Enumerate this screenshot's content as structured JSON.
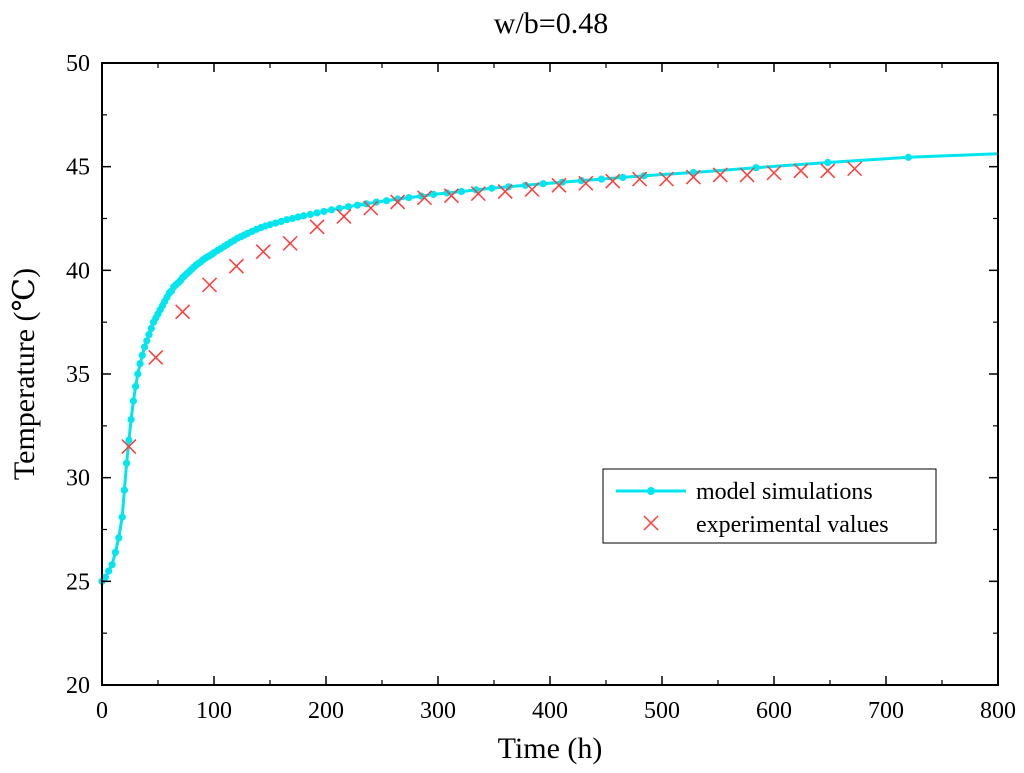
{
  "chart_data": {
    "type": "line",
    "title": "w/b=0.48",
    "xlabel": "Time (h)",
    "ylabel": "Temperature (℃)",
    "xlim": [
      0,
      800
    ],
    "ylim": [
      20,
      50
    ],
    "xticks": [
      0,
      100,
      200,
      300,
      400,
      500,
      600,
      700,
      800
    ],
    "yticks": [
      20,
      25,
      30,
      35,
      40,
      45,
      50
    ],
    "grid": false,
    "legend_position": "lower-right",
    "series": [
      {
        "name": "model simulations",
        "style": "line-with-markers",
        "color": "#00E5EE",
        "x": [
          0,
          3,
          6,
          9,
          12,
          15,
          18,
          20,
          22,
          24,
          26,
          28,
          30,
          32,
          34,
          36,
          38,
          40,
          42,
          44,
          46,
          48,
          50,
          52,
          54,
          56,
          58,
          60,
          62,
          64,
          66,
          68,
          70,
          72,
          74,
          76,
          78,
          80,
          82,
          84,
          86,
          88,
          90,
          92,
          94,
          96,
          98,
          100,
          103,
          106,
          109,
          112,
          115,
          118,
          121,
          124,
          127,
          130,
          134,
          138,
          142,
          146,
          150,
          155,
          160,
          165,
          170,
          175,
          180,
          186,
          192,
          198,
          205,
          212,
          220,
          228,
          236,
          245,
          254,
          264,
          274,
          285,
          296,
          308,
          321,
          334,
          348,
          363,
          378,
          394,
          411,
          428,
          446,
          465,
          484,
          528,
          584,
          648,
          720
        ],
        "y": [
          25.0,
          25.2,
          25.5,
          25.8,
          26.4,
          27.1,
          28.1,
          29.4,
          30.7,
          31.8,
          32.8,
          33.7,
          34.4,
          35.0,
          35.5,
          35.9,
          36.3,
          36.6,
          36.9,
          37.2,
          37.5,
          37.7,
          37.9,
          38.1,
          38.3,
          38.5,
          38.7,
          38.9,
          39.0,
          39.2,
          39.3,
          39.4,
          39.5,
          39.65,
          39.75,
          39.85,
          39.95,
          40.05,
          40.15,
          40.25,
          40.33,
          40.4,
          40.5,
          40.57,
          40.64,
          40.7,
          40.77,
          40.85,
          40.95,
          41.05,
          41.15,
          41.25,
          41.35,
          41.45,
          41.55,
          41.62,
          41.7,
          41.78,
          41.88,
          41.98,
          42.06,
          42.14,
          42.2,
          42.28,
          42.36,
          42.44,
          42.5,
          42.57,
          42.63,
          42.7,
          42.77,
          42.84,
          42.92,
          42.99,
          43.07,
          43.14,
          43.21,
          43.29,
          43.36,
          43.44,
          43.51,
          43.58,
          43.66,
          43.73,
          43.8,
          43.88,
          43.96,
          44.03,
          44.1,
          44.18,
          44.25,
          44.33,
          44.4,
          44.48,
          44.56,
          44.72,
          44.95,
          45.2,
          45.45
        ],
        "curve_x": [
          720,
          800
        ],
        "curve_y": [
          45.45,
          45.62
        ]
      },
      {
        "name": "experimental values",
        "style": "x-markers",
        "color": "#FF3B3B",
        "x": [
          24,
          48,
          72,
          96,
          120,
          144,
          168,
          192,
          216,
          240,
          264,
          288,
          312,
          336,
          360,
          384,
          408,
          432,
          456,
          480,
          504,
          528,
          552,
          576,
          600,
          624,
          648,
          672
        ],
        "y": [
          31.5,
          35.8,
          38.0,
          39.3,
          40.2,
          40.9,
          41.3,
          42.1,
          42.6,
          43.0,
          43.3,
          43.5,
          43.6,
          43.7,
          43.8,
          43.9,
          44.1,
          44.2,
          44.3,
          44.4,
          44.4,
          44.5,
          44.6,
          44.6,
          44.7,
          44.8,
          44.8,
          44.9
        ]
      }
    ]
  }
}
